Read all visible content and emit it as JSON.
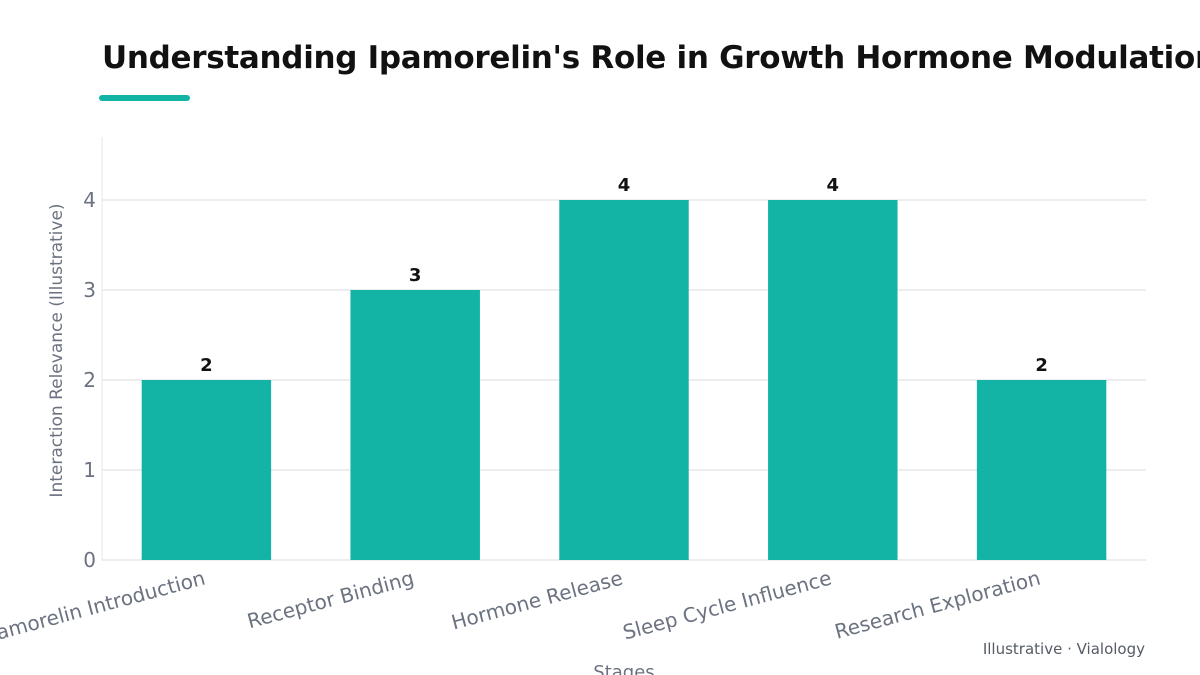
{
  "title": "Understanding Ipamorelin's Role in Growth Hormone Modulation",
  "footer": "Illustrative · Vialology",
  "colors": {
    "bar": "#13b3a6",
    "accent": "#13b3a6",
    "grid": "#e6e7ea",
    "axis_text": "#6b7280",
    "value_label": "#111111"
  },
  "chart_data": {
    "type": "bar",
    "categories": [
      "Ipamorelin Introduction",
      "Receptor Binding",
      "Hormone Release",
      "Sleep Cycle Influence",
      "Research Exploration"
    ],
    "values": [
      2,
      3,
      4,
      4,
      2
    ],
    "xlabel": "Stages",
    "ylabel": "Interaction Relevance (Illustrative)",
    "ylim": [
      0,
      4.7
    ],
    "yticks": [
      0,
      1,
      2,
      3,
      4
    ],
    "grid": true,
    "data_labels": true
  }
}
